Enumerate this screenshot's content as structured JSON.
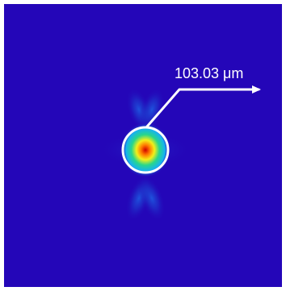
{
  "image": {
    "beam_profile": {
      "background_color": "#2406b8",
      "colormap": [
        "#2406b8",
        "#1f3ad8",
        "#16b2f0",
        "#27d68c",
        "#f3ef19",
        "#ff7a00",
        "#cf0000"
      ],
      "measurement": {
        "value": "103.03 μm",
        "color": "#ffffff"
      }
    }
  }
}
